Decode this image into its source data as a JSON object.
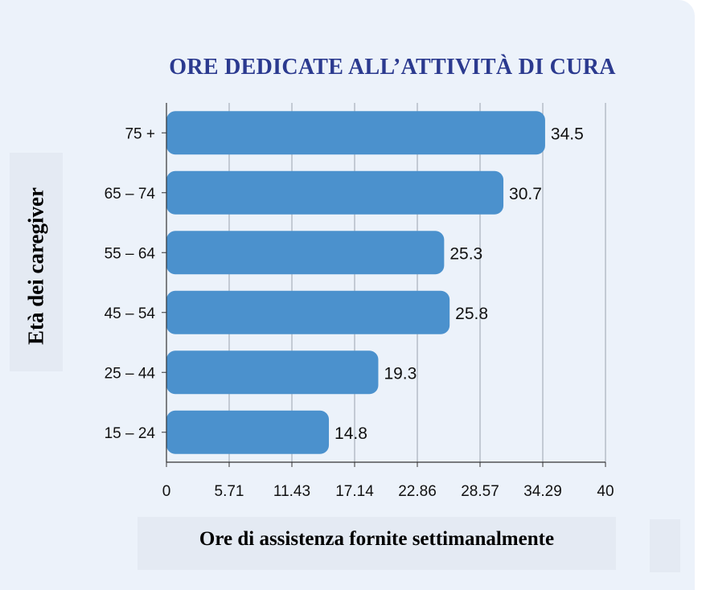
{
  "chart_data": {
    "type": "bar",
    "orientation": "horizontal",
    "title": "ORE DEDICATE ALL’ATTIVITÀ DI CURA",
    "xlabel": "Ore di assistenza fornite settimanalmente",
    "ylabel": "Età dei caregiver",
    "categories": [
      "75 +",
      "65 – 74",
      "55 – 64",
      "45 – 54",
      "25 – 44",
      "15 – 24"
    ],
    "values": [
      34.5,
      30.7,
      25.3,
      25.8,
      19.3,
      14.8
    ],
    "value_labels": [
      "34.5",
      "30.7",
      "25.3",
      "25.8",
      "19.3",
      "14.8"
    ],
    "xlim": [
      0,
      40
    ],
    "xticks": [
      "0",
      "5.71",
      "11.43",
      "17.14",
      "22.86",
      "28.57",
      "34.29",
      "40"
    ],
    "grid": true,
    "bar_color": "#4b91cd",
    "title_color": "#2b3a8f"
  }
}
